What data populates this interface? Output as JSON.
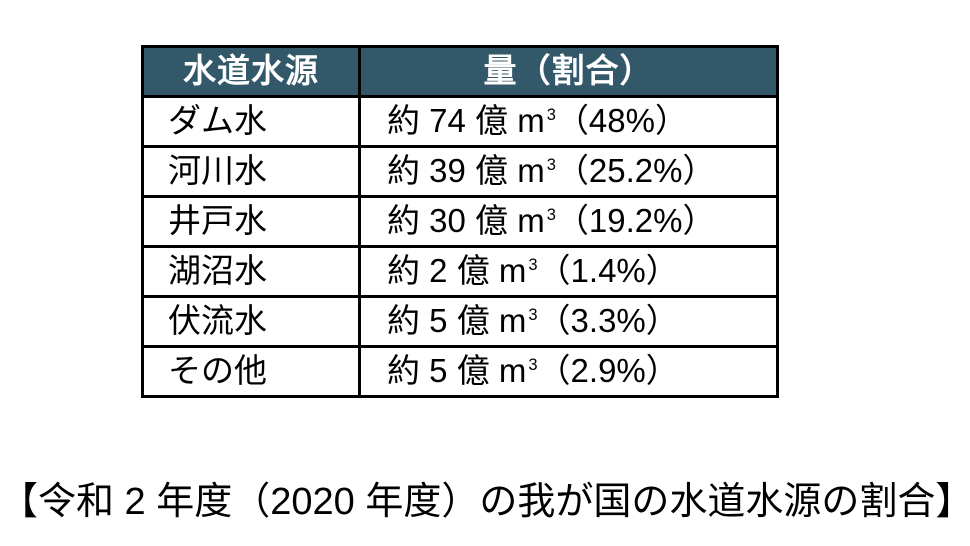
{
  "table": {
    "headers": {
      "source": "水道水源",
      "amount": "量（割合）"
    },
    "rows": [
      {
        "source": "ダム水",
        "amount": "約 74 億 m",
        "sup": "3",
        "percent": "（48%）"
      },
      {
        "source": "河川水",
        "amount": "約 39 億 m",
        "sup": "3",
        "percent": "（25.2%）"
      },
      {
        "source": "井戸水",
        "amount": "約 30 億 m",
        "sup": "3",
        "percent": "（19.2%）"
      },
      {
        "source": "湖沼水",
        "amount": "約 2 億 m",
        "sup": "3",
        "percent": "（1.4%）"
      },
      {
        "source": "伏流水",
        "amount": "約 5 億 m",
        "sup": "3",
        "percent": "（3.3%）"
      },
      {
        "source": "その他",
        "amount": "約 5 億 m",
        "sup": "3",
        "percent": "（2.9%）"
      }
    ]
  },
  "caption": "【令和 2 年度（2020 年度）の我が国の水道水源の割合】",
  "colors": {
    "header_bg": "#33586A",
    "header_text": "#FFFFFF",
    "border": "#000000",
    "body_text": "#000000",
    "background": "#FFFFFF"
  },
  "chart_data": {
    "type": "table",
    "title": "【令和 2 年度（2020 年度）の我が国の水道水源の割合】",
    "columns": [
      "水道水源",
      "量（割合）"
    ],
    "categories": [
      "ダム水",
      "河川水",
      "井戸水",
      "湖沼水",
      "伏流水",
      "その他"
    ],
    "series": [
      {
        "name": "量（億m3）",
        "values": [
          74,
          39,
          30,
          2,
          5,
          5
        ]
      },
      {
        "name": "割合（%）",
        "values": [
          48,
          25.2,
          19.2,
          1.4,
          3.3,
          2.9
        ]
      }
    ]
  }
}
